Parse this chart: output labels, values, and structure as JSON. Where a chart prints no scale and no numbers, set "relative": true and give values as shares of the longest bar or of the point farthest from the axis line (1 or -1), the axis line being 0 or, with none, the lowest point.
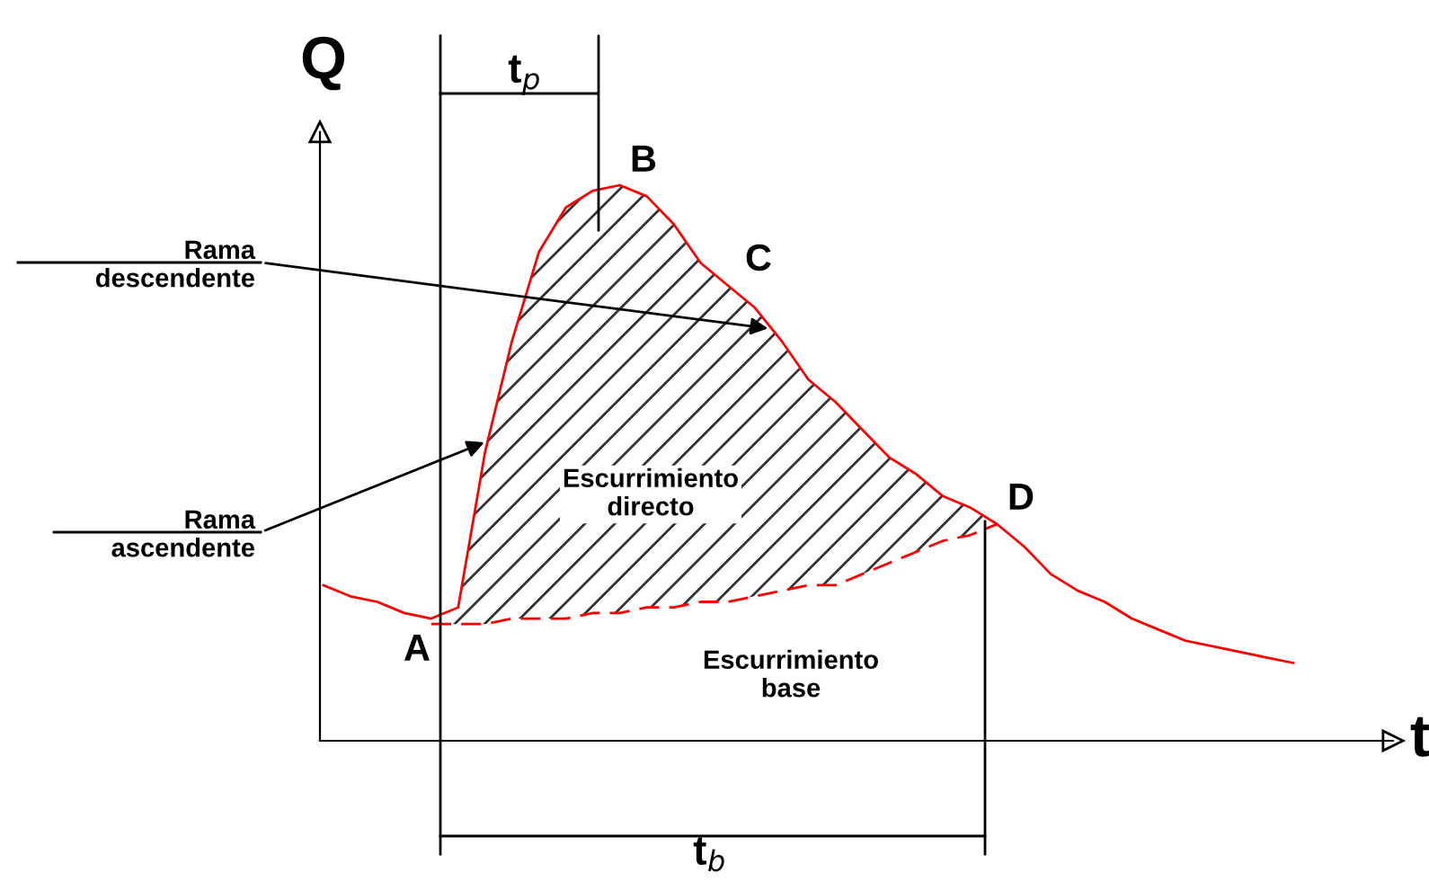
{
  "chart_data": {
    "type": "line",
    "relative": true,
    "xlabel": "t",
    "ylabel": "Q",
    "categories": [
      null,
      null,
      null,
      null,
      null,
      null,
      null,
      null,
      null,
      null,
      null,
      null,
      null,
      null,
      null,
      null,
      null,
      null,
      null,
      null,
      null,
      null,
      null,
      null,
      null,
      null,
      null,
      null,
      null,
      null,
      null,
      null,
      null,
      null,
      null,
      null,
      null
    ],
    "series": [
      {
        "color": "#ff0000",
        "line_style": "solid",
        "values": [
          0.28,
          0.26,
          0.25,
          0.23,
          0.22,
          0.24,
          0.52,
          0.72,
          0.88,
          0.96,
          0.99,
          1,
          0.98,
          0.93,
          0.86,
          0.82,
          0.78,
          0.72,
          0.65,
          0.61,
          0.56,
          0.51,
          0.48,
          0.44,
          0.42,
          0.39,
          0.35,
          0.3,
          0.27,
          0.25,
          0.22,
          0.2,
          0.18,
          0.17,
          0.16,
          0.15,
          0.14
        ]
      },
      {
        "color": "#ff0000",
        "line_style": "dashed",
        "values": [
          null,
          null,
          null,
          null,
          0.21,
          0.21,
          0.21,
          0.22,
          0.22,
          0.22,
          0.23,
          0.23,
          0.24,
          0.24,
          0.25,
          0.25,
          0.26,
          0.27,
          0.28,
          0.28,
          0.3,
          0.32,
          0.34,
          0.36,
          0.37,
          0.39,
          null,
          null,
          null,
          null,
          null,
          null,
          null,
          null,
          null,
          null,
          null
        ]
      }
    ],
    "annotations": [
      "A",
      "B",
      "C",
      "D",
      "t$_{p}$",
      "t$_{b}$",
      "Rama\ndescendente",
      "Rama\nascendente",
      "Escurrimiento\ndirecto",
      "Escurrimiento\nbase"
    ],
    "grid": false,
    "legend": false,
    "marker": "none"
  }
}
